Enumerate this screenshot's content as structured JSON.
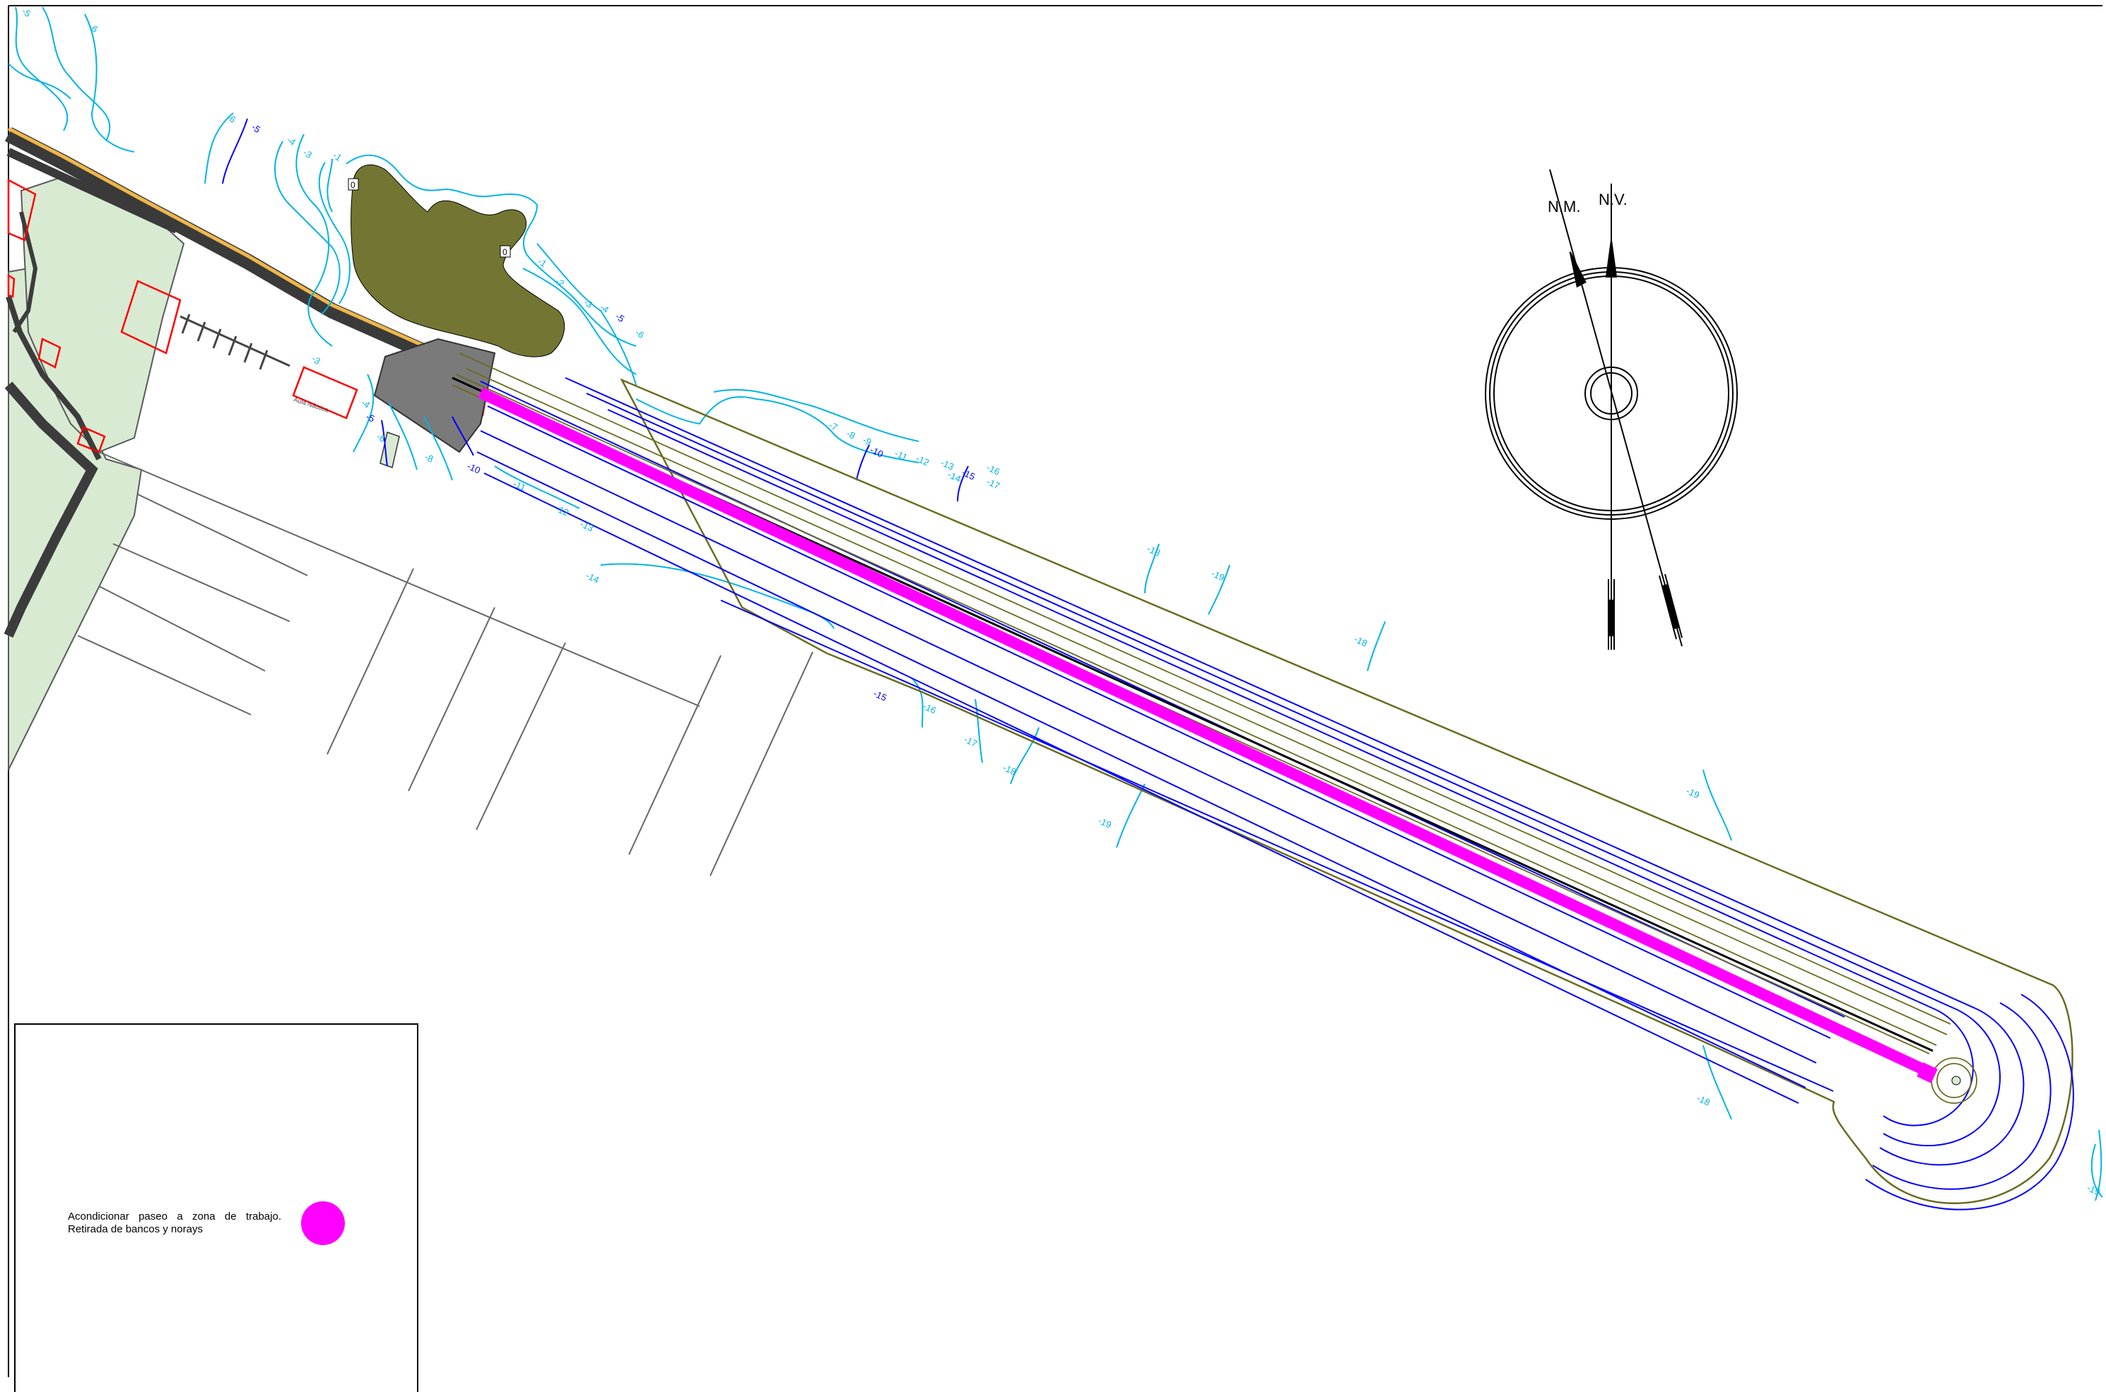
{
  "legend": {
    "item_text": "Acondicionar paseo a zona de trabajo. Retirada de bancos y norays",
    "item_color": "#ff00ff"
  },
  "compass": {
    "magnetic_north_label": "N.M.",
    "true_north_label": "N.V."
  },
  "building_label": "Aula Náutica",
  "island_labels": [
    "0",
    "0"
  ],
  "contour_labels_cyan": [
    "-5",
    "-6",
    "-6",
    "-4",
    "-3",
    "-1",
    "-1",
    "-2",
    "-3",
    "-4",
    "-6",
    "-3",
    "-4",
    "-6",
    "-8",
    "-11",
    "-12",
    "-13",
    "-14",
    "-7",
    "-8",
    "-9",
    "-11",
    "-12",
    "-13",
    "-14",
    "-16",
    "-17",
    "-18",
    "-19",
    "-18",
    "-16",
    "-17",
    "-18",
    "-19",
    "-19",
    "-18",
    "-19"
  ],
  "contour_labels_blue": [
    "-5",
    "-5",
    "-5",
    "-10",
    "-10",
    "-15",
    "-15"
  ],
  "colors": {
    "path_highlight": "#ff00ff",
    "bathymetry_line": "#0000ff",
    "contour_line": "#00b4e6",
    "island": "#737632",
    "land_green": "#d9ead3",
    "breakwater_outline": "#6b6b20",
    "building": "#ff0000",
    "pavement": "#6e6e6e"
  }
}
